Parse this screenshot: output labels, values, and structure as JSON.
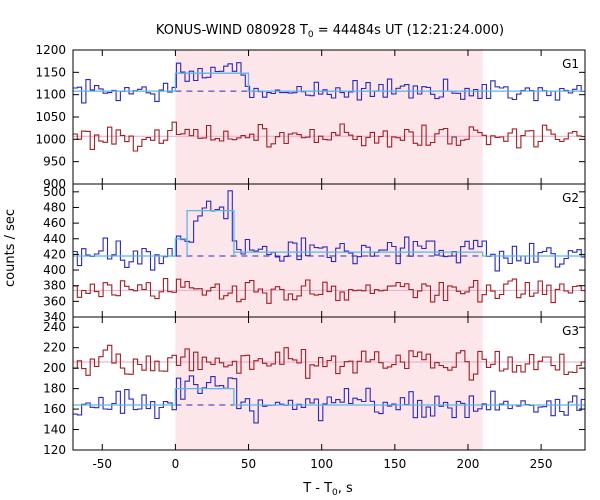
{
  "chart_data": {
    "type": "line",
    "title_prefix": "KONUS-WIND 080928 T",
    "title_sub": "0",
    "title_suffix": " = 44484s UT (12:21:24.000)",
    "ylabel": "counts / sec",
    "xlabel_main": "T - T",
    "xlabel_sub": "0",
    "xlabel_suffix": ", s",
    "xlim": [
      -70,
      280
    ],
    "xticks": [
      -50,
      0,
      50,
      100,
      150,
      200,
      250
    ],
    "highlight_interval": [
      0,
      210
    ],
    "bin_width": 2.944,
    "colors": {
      "upper": "#2a2ab8",
      "lower": "#a01e24",
      "model": "#5fb4e8",
      "background_fit": "#e8a8c8",
      "shade": "#fde6ea"
    },
    "panels": [
      {
        "name": "G1",
        "ylim": [
          900,
          1200
        ],
        "yticks": [
          900,
          950,
          1000,
          1050,
          1100,
          1150,
          1200
        ],
        "upper": {
          "base": 1108,
          "amp": 26,
          "pulses": [
            {
              "t0": 0,
              "t1": 50,
              "h": 40
            }
          ]
        },
        "lower": {
          "base": 1007,
          "amp": 26,
          "pulses": []
        },
        "model": {
          "base": 1108,
          "steps": [
            {
              "t0": 0,
              "t1": 50,
              "v": 1148
            }
          ]
        },
        "dashed_level": 1108,
        "bg_fit_level": 1007
      },
      {
        "name": "G2",
        "ylim": [
          340,
          510
        ],
        "yticks": [
          340,
          360,
          380,
          400,
          420,
          440,
          460,
          480,
          500
        ],
        "upper": {
          "base": 418,
          "amp": 18,
          "pulses": [
            {
              "t0": 0,
              "t1": 10,
              "h": 20
            },
            {
              "t0": 10,
              "t1": 38,
              "h": 58
            },
            {
              "t0": 38,
              "t1": 48,
              "h": 18
            },
            {
              "t0": 48,
              "t1": 210,
              "h": 6
            }
          ]
        },
        "lower": {
          "base": 374,
          "amp": 15,
          "pulses": []
        },
        "model": {
          "base": 418,
          "steps": [
            {
              "t0": 0,
              "t1": 8,
              "v": 440
            },
            {
              "t0": 8,
              "t1": 40,
              "v": 476
            },
            {
              "t0": 40,
              "t1": 210,
              "v": 423
            }
          ]
        },
        "dashed_level": 418,
        "bg_fit_level": 374
      },
      {
        "name": "G3",
        "ylim": [
          120,
          250
        ],
        "yticks": [
          120,
          140,
          160,
          180,
          200,
          220,
          240
        ],
        "upper": {
          "base": 164,
          "amp": 14,
          "pulses": [
            {
              "t0": 0,
              "t1": 40,
              "h": 20
            }
          ]
        },
        "lower": {
          "base": 206,
          "amp": 14,
          "pulses": []
        },
        "model": {
          "base": 164,
          "steps": [
            {
              "t0": 0,
              "t1": 40,
              "v": 180
            }
          ]
        },
        "dashed_level": 164,
        "bg_fit_level": 206
      }
    ]
  }
}
